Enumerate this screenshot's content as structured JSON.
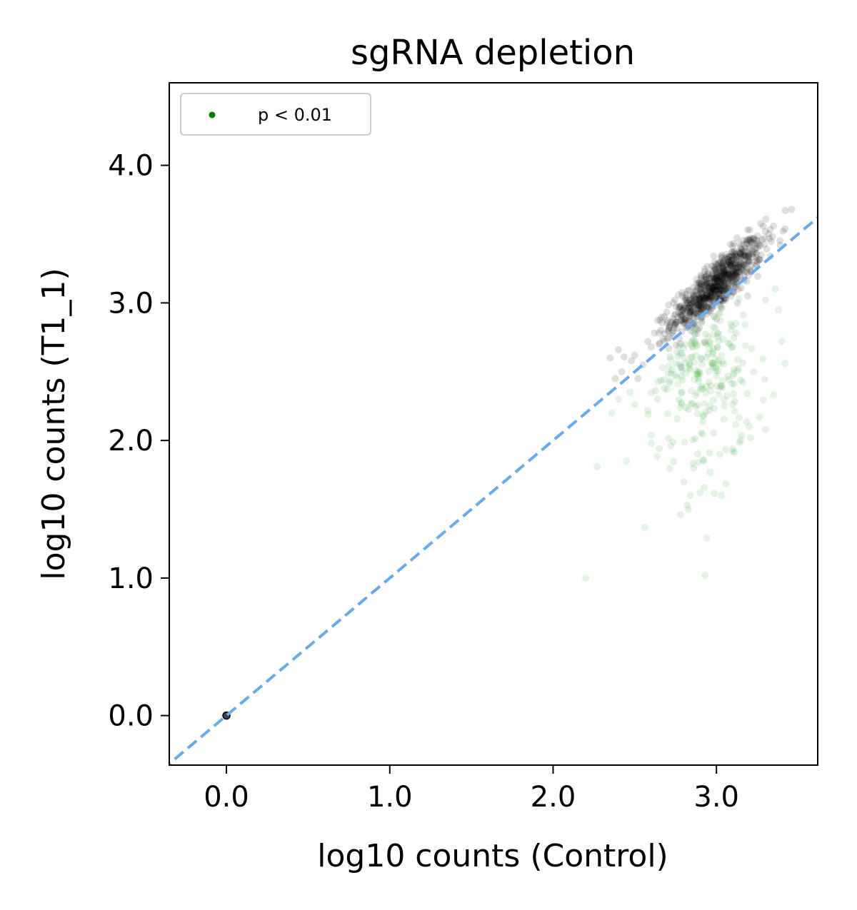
{
  "chart_data": {
    "type": "scatter",
    "title": "sgRNA depletion",
    "xlabel": "log10 counts (Control)",
    "ylabel": "log10 counts (T1_1)",
    "xlim": [
      -0.35,
      3.62
    ],
    "ylim": [
      -0.36,
      4.6
    ],
    "xticks": [
      0.0,
      1.0,
      2.0,
      3.0
    ],
    "yticks": [
      0.0,
      1.0,
      2.0,
      3.0,
      4.0
    ],
    "xtick_labels": [
      "0.0",
      "1.0",
      "2.0",
      "3.0"
    ],
    "ytick_labels": [
      "0.0",
      "1.0",
      "2.0",
      "3.0",
      "4.0"
    ],
    "grid": false,
    "legend": {
      "position": "upper-left",
      "label": "p < 0.01"
    },
    "reference_line": {
      "type": "identity",
      "style": "dashed",
      "color": "#66aaf0"
    },
    "series": [
      {
        "color": "#000000",
        "opacity": 0.12,
        "points": [
          [
            0.0,
            0.0
          ],
          [
            2.35,
            2.6
          ],
          [
            2.4,
            2.66
          ],
          [
            2.48,
            2.58
          ],
          [
            2.42,
            2.5
          ],
          [
            2.5,
            2.62
          ],
          [
            2.55,
            2.55
          ],
          [
            2.6,
            2.68
          ],
          [
            2.38,
            2.45
          ],
          [
            2.52,
            2.45
          ],
          [
            2.58,
            2.72
          ],
          [
            2.62,
            2.78
          ],
          [
            2.66,
            2.8
          ],
          [
            2.7,
            2.74
          ],
          [
            2.72,
            2.86
          ],
          [
            2.68,
            2.9
          ],
          [
            2.75,
            2.92
          ],
          [
            2.78,
            2.98
          ],
          [
            2.8,
            2.88
          ],
          [
            2.82,
            3.02
          ],
          [
            2.84,
            2.96
          ],
          [
            2.86,
            3.06
          ],
          [
            2.88,
            3.0
          ],
          [
            2.9,
            3.1
          ],
          [
            2.92,
            3.04
          ],
          [
            2.94,
            3.14
          ],
          [
            2.96,
            3.08
          ],
          [
            2.98,
            3.18
          ],
          [
            3.0,
            3.12
          ],
          [
            3.02,
            3.22
          ],
          [
            3.04,
            3.16
          ],
          [
            3.06,
            3.24
          ],
          [
            3.08,
            3.2
          ],
          [
            3.1,
            3.28
          ],
          [
            3.12,
            3.22
          ],
          [
            3.14,
            3.3
          ],
          [
            3.16,
            3.26
          ],
          [
            3.18,
            3.34
          ],
          [
            3.2,
            3.3
          ],
          [
            3.22,
            3.38
          ],
          [
            3.24,
            3.36
          ],
          [
            3.26,
            3.42
          ],
          [
            3.28,
            3.46
          ],
          [
            3.3,
            3.52
          ],
          [
            3.32,
            3.5
          ],
          [
            3.35,
            3.56
          ],
          [
            3.46,
            3.68
          ],
          [
            3.33,
            3.34
          ]
        ],
        "cluster": {
          "center": [
            3.0,
            3.13
          ],
          "spread": [
            0.14,
            0.09
          ],
          "n": 750
        }
      },
      {
        "color": "#2ca02c",
        "opacity": 0.13,
        "points": [
          [
            2.2,
            1.0
          ],
          [
            2.93,
            1.02
          ],
          [
            2.94,
            1.29
          ],
          [
            2.56,
            1.37
          ],
          [
            2.27,
            1.81
          ],
          [
            2.45,
            1.85
          ],
          [
            2.82,
            1.53
          ],
          [
            2.84,
            1.6
          ],
          [
            2.92,
            1.85
          ],
          [
            3.03,
            1.6
          ],
          [
            3.02,
            1.9
          ],
          [
            3.1,
            1.92
          ],
          [
            3.15,
            2.0
          ],
          [
            3.2,
            2.1
          ],
          [
            3.3,
            2.08
          ],
          [
            3.35,
            2.33
          ],
          [
            3.42,
            2.56
          ],
          [
            3.4,
            2.72
          ],
          [
            3.38,
            2.95
          ],
          [
            3.36,
            3.1
          ],
          [
            3.3,
            3.02
          ],
          [
            2.8,
            1.7
          ],
          [
            2.9,
            1.62
          ],
          [
            2.86,
            1.8
          ],
          [
            2.72,
            1.96
          ],
          [
            2.65,
            1.94
          ],
          [
            2.6,
            2.04
          ],
          [
            2.58,
            2.22
          ],
          [
            2.36,
            2.2
          ],
          [
            2.4,
            2.3
          ],
          [
            2.5,
            2.26
          ],
          [
            2.47,
            2.35
          ],
          [
            2.78,
            1.46
          ]
        ],
        "cluster": {
          "center": [
            2.95,
            2.5
          ],
          "spread": [
            0.15,
            0.32
          ],
          "n": 230
        }
      }
    ]
  }
}
